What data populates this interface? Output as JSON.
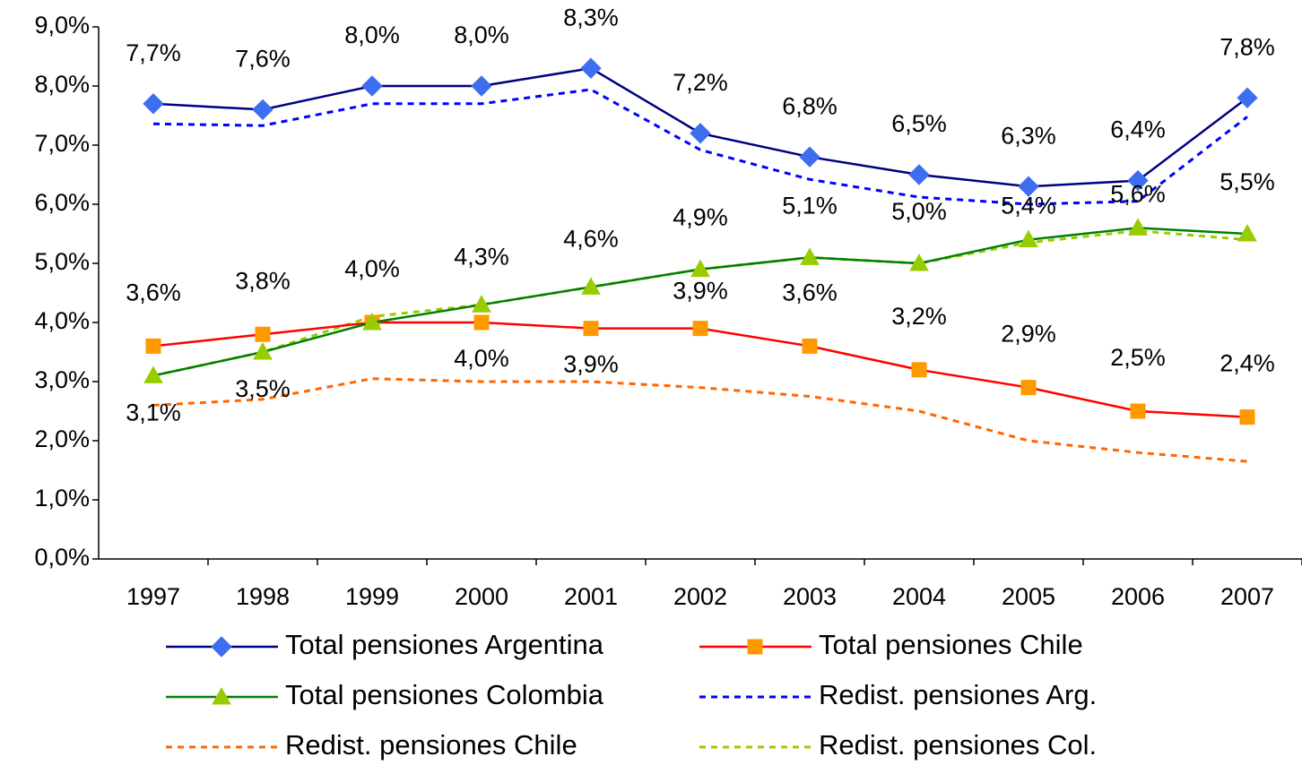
{
  "chart_data": {
    "type": "line",
    "categories": [
      "1997",
      "1998",
      "1999",
      "2000",
      "2001",
      "2002",
      "2003",
      "2004",
      "2005",
      "2006",
      "2007"
    ],
    "ylim": [
      0,
      9
    ],
    "yticks": [
      {
        "value": 0,
        "label": "0,0%"
      },
      {
        "value": 1,
        "label": "1,0%"
      },
      {
        "value": 2,
        "label": "2,0%"
      },
      {
        "value": 3,
        "label": "3,0%"
      },
      {
        "value": 4,
        "label": "4,0%"
      },
      {
        "value": 5,
        "label": "5,0%"
      },
      {
        "value": 6,
        "label": "6,0%"
      },
      {
        "value": 7,
        "label": "7,0%"
      },
      {
        "value": 8,
        "label": "8,0%"
      },
      {
        "value": 9,
        "label": "9,0%"
      }
    ],
    "series": [
      {
        "name": "Total pensiones Argentina",
        "color": "#000080",
        "marker": "diamond",
        "marker_color": "#3d6ef0",
        "values": [
          7.7,
          7.6,
          8.0,
          8.0,
          8.3,
          7.2,
          6.8,
          6.5,
          6.3,
          6.4,
          7.8
        ],
        "value_labels": [
          "7,7%",
          "7,6%",
          "8,0%",
          "8,0%",
          "8,3%",
          "7,2%",
          "6,8%",
          "6,5%",
          "6,3%",
          "6,4%",
          "7,8%"
        ]
      },
      {
        "name": "Total pensiones Chile",
        "color": "#ff0000",
        "marker": "square",
        "marker_color": "#ff9900",
        "values": [
          3.6,
          3.8,
          4.0,
          4.0,
          3.9,
          3.9,
          3.6,
          3.2,
          2.9,
          2.5,
          2.4
        ],
        "value_labels": [
          "3,6%",
          "3,8%",
          "4,0%",
          "4,0%",
          "3,9%",
          "3,9%",
          "3,6%",
          "3,2%",
          "2,9%",
          "2,5%",
          "2,4%"
        ]
      },
      {
        "name": "Total pensiones Colombia",
        "color": "#008000",
        "marker": "triangle",
        "marker_color": "#99cc00",
        "values": [
          3.1,
          3.5,
          4.0,
          4.3,
          4.6,
          4.9,
          5.1,
          5.0,
          5.4,
          5.6,
          5.5
        ],
        "value_labels": [
          "3,1%",
          "3,5%",
          null,
          "4,3%",
          "4,6%",
          "4,9%",
          "5,1%",
          "5,0%",
          "5,4%",
          "5,6%",
          "5,5%"
        ]
      },
      {
        "name": "Redist. pensiones Arg.",
        "color": "#0000ff",
        "dash": true,
        "values": [
          7.36,
          7.33,
          7.7,
          7.7,
          7.94,
          6.92,
          6.42,
          6.12,
          6.0,
          6.05,
          7.48
        ]
      },
      {
        "name": "Redist. pensiones Chile",
        "color": "#ff6600",
        "dash": true,
        "values": [
          2.6,
          2.7,
          3.05,
          3.0,
          3.0,
          2.9,
          2.75,
          2.5,
          2.0,
          1.8,
          1.65
        ]
      },
      {
        "name": "Redist. pensiones Col.",
        "color": "#99cc00",
        "dash": true,
        "values": [
          3.1,
          3.5,
          4.1,
          4.3,
          4.6,
          4.9,
          5.1,
          5.0,
          5.35,
          5.55,
          5.4
        ]
      }
    ]
  }
}
